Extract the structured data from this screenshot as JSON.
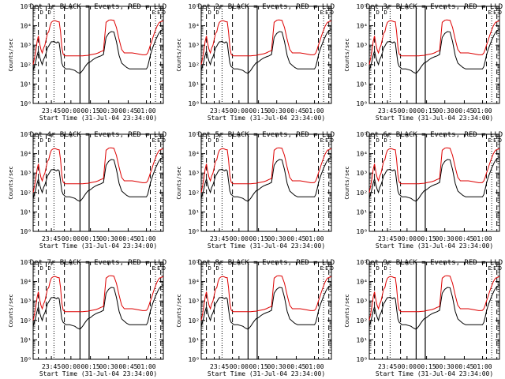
{
  "colors": {
    "events": "#000000",
    "lld": "#dd0000",
    "axis": "#000000"
  },
  "chart_data": [
    {
      "type": "line",
      "title": "Det 1r BLACK = Events, RED = LLD",
      "xlabel": "Start Time (31-Jul-04 23:34:00)",
      "ylabel": "Counts/sec",
      "y_scale": "log",
      "ylim": [
        1,
        100000
      ],
      "xlim": [
        0,
        100
      ],
      "x_ticks": [
        "23:45",
        "00:00",
        "00:15",
        "00:30",
        "00:45",
        "01:00"
      ],
      "y_ticks": [
        "10⁰",
        "10¹",
        "10²",
        "10³",
        "10⁴",
        "10⁵"
      ],
      "markers": [
        "D",
        "D",
        "E",
        "E",
        "D"
      ]
    },
    {
      "type": "line",
      "title": "Det 2r BLACK = Events, RED = LLD",
      "xlabel": "Start Time (31-Jul-04 23:34:00)",
      "ylabel": "Counts/sec",
      "y_scale": "log",
      "ylim": [
        1,
        100000
      ],
      "xlim": [
        0,
        100
      ],
      "x_ticks": [
        "23:45",
        "00:00",
        "00:15",
        "00:30",
        "00:45",
        "01:00"
      ],
      "y_ticks": [
        "10⁰",
        "10¹",
        "10²",
        "10³",
        "10⁴",
        "10⁵"
      ],
      "markers": [
        "D",
        "D",
        "E",
        "E",
        "D"
      ]
    },
    {
      "type": "line",
      "title": "Det 3r BLACK = Events, RED = LLD",
      "xlabel": "Start Time (31-Jul-04 23:34:00)",
      "ylabel": "Counts/sec",
      "y_scale": "log",
      "ylim": [
        1,
        100000
      ],
      "xlim": [
        0,
        100
      ],
      "x_ticks": [
        "23:45",
        "00:00",
        "00:15",
        "00:30",
        "00:45",
        "01:00"
      ],
      "y_ticks": [
        "10⁰",
        "10¹",
        "10²",
        "10³",
        "10⁴",
        "10⁵"
      ],
      "markers": [
        "D",
        "D",
        "E",
        "E",
        "D"
      ]
    },
    {
      "type": "line",
      "title": "Det 4r BLACK = Events, RED = LLD",
      "xlabel": "Start Time (31-Jul-04 23:34:00)",
      "ylabel": "Counts/sec",
      "y_scale": "log",
      "ylim": [
        1,
        100000
      ],
      "xlim": [
        0,
        100
      ],
      "x_ticks": [
        "23:45",
        "00:00",
        "00:15",
        "00:30",
        "00:45",
        "01:00"
      ],
      "y_ticks": [
        "10⁰",
        "10¹",
        "10²",
        "10³",
        "10⁴",
        "10⁵"
      ],
      "markers": [
        "D",
        "D",
        "E",
        "E",
        "D"
      ]
    },
    {
      "type": "line",
      "title": "Det 5r BLACK = Events, RED = LLD",
      "xlabel": "Start Time (31-Jul-04 23:34:00)",
      "ylabel": "Counts/sec",
      "y_scale": "log",
      "ylim": [
        1,
        100000
      ],
      "xlim": [
        0,
        100
      ],
      "x_ticks": [
        "23:45",
        "00:00",
        "00:15",
        "00:30",
        "00:45",
        "01:00"
      ],
      "y_ticks": [
        "10⁰",
        "10¹",
        "10²",
        "10³",
        "10⁴",
        "10⁵"
      ],
      "markers": [
        "D",
        "D",
        "E",
        "E",
        "D"
      ]
    },
    {
      "type": "line",
      "title": "Det 6r BLACK = Events, RED = LLD",
      "xlabel": "Start Time (31-Jul-04 23:34:00)",
      "ylabel": "Counts/sec",
      "y_scale": "log",
      "ylim": [
        1,
        100000
      ],
      "xlim": [
        0,
        100
      ],
      "x_ticks": [
        "23:45",
        "00:00",
        "00:15",
        "00:30",
        "00:45",
        "01:00"
      ],
      "y_ticks": [
        "10⁰",
        "10¹",
        "10²",
        "10³",
        "10⁴",
        "10⁵"
      ],
      "markers": [
        "D",
        "D",
        "E",
        "E",
        "D"
      ]
    },
    {
      "type": "line",
      "title": "Det 7r BLACK = Events, RED = LLD",
      "xlabel": "Start Time (31-Jul-04 23:34:00)",
      "ylabel": "Counts/sec",
      "y_scale": "log",
      "ylim": [
        1,
        100000
      ],
      "xlim": [
        0,
        100
      ],
      "x_ticks": [
        "23:45",
        "00:00",
        "00:15",
        "00:30",
        "00:45",
        "01:00"
      ],
      "y_ticks": [
        "10⁰",
        "10¹",
        "10²",
        "10³",
        "10⁴",
        "10⁵"
      ],
      "markers": [
        "D",
        "D",
        "E",
        "E",
        "D"
      ]
    },
    {
      "type": "line",
      "title": "Det 8r BLACK = Events, RED = LLD",
      "xlabel": "Start Time (31-Jul-04 23:34:00)",
      "ylabel": "Counts/sec",
      "y_scale": "log",
      "ylim": [
        1,
        100000
      ],
      "xlim": [
        0,
        100
      ],
      "x_ticks": [
        "23:45",
        "00:00",
        "00:15",
        "00:30",
        "00:45",
        "01:00"
      ],
      "y_ticks": [
        "10⁰",
        "10¹",
        "10²",
        "10³",
        "10⁴",
        "10⁵"
      ],
      "markers": [
        "D",
        "D",
        "E",
        "E",
        "D"
      ]
    },
    {
      "type": "line",
      "title": "Det 9r BLACK = Events, RED = LLD",
      "xlabel": "Start Time (31-Jul-04 23:34:00)",
      "ylabel": "Counts/sec",
      "y_scale": "log",
      "ylim": [
        1,
        100000
      ],
      "xlim": [
        0,
        100
      ],
      "x_ticks": [
        "23:45",
        "00:00",
        "00:15",
        "00:30",
        "00:45",
        "01:00"
      ],
      "y_ticks": [
        "10⁰",
        "10¹",
        "10²",
        "10³",
        "10⁴",
        "10⁵"
      ],
      "markers": [
        "D",
        "D",
        "E",
        "E",
        "D"
      ]
    }
  ],
  "shared_profiles": {
    "lld": {
      "x": [
        0,
        1,
        2,
        3,
        4,
        5,
        6,
        7,
        8,
        9,
        10,
        11,
        12,
        13,
        14,
        15,
        16,
        17,
        18,
        19,
        20,
        21,
        22,
        23,
        24,
        25,
        26,
        28,
        30,
        32,
        34,
        36,
        38,
        40,
        42,
        44,
        46,
        48,
        50,
        52,
        54,
        56,
        58,
        59,
        60,
        62,
        64,
        66,
        68,
        70,
        72,
        74,
        76,
        78,
        80,
        82,
        84,
        86,
        87,
        88,
        89,
        90,
        91,
        92,
        93,
        94,
        95,
        96,
        97,
        98,
        99,
        100
      ],
      "y": [
        100,
        200,
        500,
        1500,
        3000,
        1200,
        600,
        400,
        700,
        1000,
        2000,
        4000,
        5000,
        10000,
        15000,
        17000,
        18000,
        18000,
        17000,
        16000,
        16000,
        5000,
        800,
        350,
        290,
        280,
        280,
        280,
        280,
        280,
        280,
        280,
        280,
        290,
        300,
        320,
        340,
        360,
        400,
        470,
        520,
        15000,
        19000,
        20000,
        20000,
        19000,
        8000,
        2000,
        600,
        400,
        400,
        400,
        400,
        380,
        360,
        340,
        320,
        320,
        330,
        400,
        600,
        1000,
        1500,
        2500,
        4000,
        6000,
        9000,
        12000,
        15000,
        16000,
        17000,
        18000
      ]
    },
    "events": {
      "x": [
        0,
        1,
        2,
        3,
        4,
        5,
        6,
        7,
        8,
        9,
        10,
        11,
        12,
        13,
        14,
        15,
        16,
        17,
        18,
        19,
        20,
        21,
        22,
        23,
        24,
        25,
        26,
        28,
        30,
        32,
        34,
        36,
        38,
        40,
        42,
        44,
        46,
        48,
        50,
        52,
        54,
        56,
        58,
        59,
        60,
        62,
        64,
        66,
        68,
        70,
        72,
        74,
        76,
        78,
        80,
        82,
        84,
        86,
        87,
        88,
        89,
        90,
        91,
        92,
        93,
        94,
        95,
        96,
        97,
        98,
        99,
        100
      ],
      "y": [
        50,
        80,
        150,
        300,
        500,
        250,
        150,
        100,
        180,
        250,
        400,
        700,
        900,
        1200,
        1500,
        1500,
        1600,
        1400,
        1300,
        1500,
        1300,
        400,
        120,
        80,
        70,
        60,
        60,
        60,
        55,
        50,
        40,
        35,
        50,
        80,
        120,
        140,
        180,
        220,
        250,
        280,
        330,
        2500,
        4000,
        4500,
        5000,
        4800,
        1500,
        300,
        120,
        90,
        70,
        60,
        60,
        60,
        60,
        60,
        60,
        60,
        60,
        80,
        150,
        300,
        500,
        800,
        1200,
        1800,
        2500,
        3500,
        4500,
        5500,
        6000,
        6500
      ]
    },
    "vlines": [
      {
        "x": 4,
        "style": "dashed"
      },
      {
        "x": 10,
        "style": "dashed"
      },
      {
        "x": 16,
        "style": "dotted"
      },
      {
        "x": 24,
        "style": "dashed"
      },
      {
        "x": 36,
        "style": "solid"
      },
      {
        "x": 43,
        "style": "solid"
      },
      {
        "x": 90,
        "style": "dashed"
      },
      {
        "x": 94,
        "style": "dotted"
      },
      {
        "x": 98,
        "style": "dashed"
      }
    ]
  }
}
